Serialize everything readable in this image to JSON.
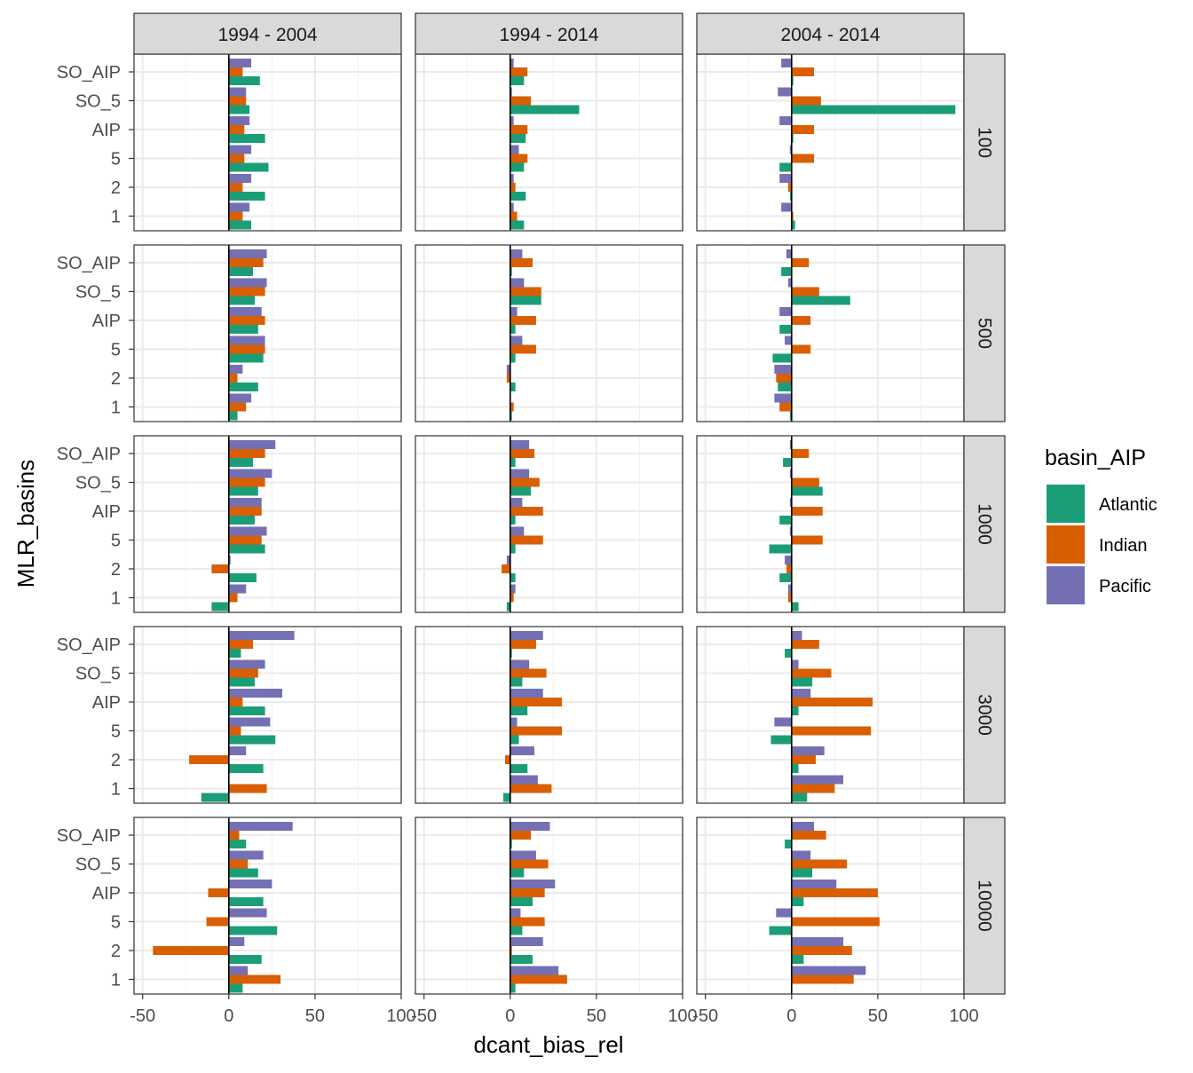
{
  "chart_data": {
    "type": "bar",
    "orientation": "horizontal",
    "xlabel": "dcant_bias_rel",
    "ylabel": "MLR_basins",
    "xlim": [
      -55,
      100
    ],
    "x_ticks": [
      -50,
      0,
      50,
      100
    ],
    "grid": true,
    "legend_position": "right",
    "legend_title": "basin_AIP",
    "columns": [
      "1994 - 2004",
      "1994 - 2014",
      "2004 - 2014"
    ],
    "rows": [
      "100",
      "500",
      "1000",
      "3000",
      "10000"
    ],
    "categories": [
      "SO_AIP",
      "SO_5",
      "AIP",
      "5",
      "2",
      "1"
    ],
    "series": [
      {
        "name": "Atlantic",
        "color": "#1B9E77"
      },
      {
        "name": "Indian",
        "color": "#D95F02"
      },
      {
        "name": "Pacific",
        "color": "#7570B3"
      }
    ],
    "panels": [
      {
        "column": "1994 - 2004",
        "row": "100",
        "values": {
          "Atlantic": [
            18,
            12,
            21,
            23,
            21,
            13
          ],
          "Indian": [
            8,
            10,
            9,
            9,
            8,
            8
          ],
          "Pacific": [
            13,
            10,
            12,
            13,
            13,
            12
          ]
        }
      },
      {
        "column": "1994 - 2014",
        "row": "100",
        "values": {
          "Atlantic": [
            8,
            40,
            9,
            8,
            9,
            8
          ],
          "Indian": [
            10,
            12,
            10,
            10,
            3,
            4
          ],
          "Pacific": [
            2,
            1,
            2,
            5,
            2,
            2
          ]
        }
      },
      {
        "column": "2004 - 2014",
        "row": "100",
        "values": {
          "Atlantic": [
            1,
            95,
            1,
            -7,
            -1,
            2
          ],
          "Indian": [
            13,
            17,
            13,
            13,
            -2,
            1
          ],
          "Pacific": [
            -6,
            -8,
            -7,
            -1,
            -7,
            -6
          ]
        }
      },
      {
        "column": "1994 - 2004",
        "row": "500",
        "values": {
          "Atlantic": [
            14,
            15,
            17,
            20,
            17,
            5
          ],
          "Indian": [
            20,
            21,
            21,
            21,
            5,
            10
          ],
          "Pacific": [
            22,
            22,
            19,
            21,
            8,
            13
          ]
        }
      },
      {
        "column": "1994 - 2014",
        "row": "500",
        "values": {
          "Atlantic": [
            1,
            18,
            3,
            3,
            3,
            1
          ],
          "Indian": [
            13,
            18,
            15,
            15,
            -2,
            2
          ],
          "Pacific": [
            7,
            8,
            4,
            7,
            -2,
            0
          ]
        }
      },
      {
        "column": "2004 - 2014",
        "row": "500",
        "values": {
          "Atlantic": [
            -6,
            34,
            -7,
            -11,
            -8,
            -1
          ],
          "Indian": [
            10,
            16,
            11,
            11,
            -9,
            -7
          ],
          "Pacific": [
            -3,
            -2,
            -7,
            -4,
            -10,
            -10
          ]
        }
      },
      {
        "column": "1994 - 2004",
        "row": "1000",
        "values": {
          "Atlantic": [
            14,
            17,
            15,
            21,
            16,
            -10
          ],
          "Indian": [
            21,
            21,
            19,
            19,
            -10,
            5
          ],
          "Pacific": [
            27,
            25,
            19,
            22,
            1,
            10
          ]
        }
      },
      {
        "column": "1994 - 2014",
        "row": "1000",
        "values": {
          "Atlantic": [
            3,
            12,
            3,
            3,
            3,
            -2
          ],
          "Indian": [
            14,
            17,
            19,
            19,
            -5,
            2
          ],
          "Pacific": [
            11,
            11,
            7,
            8,
            -2,
            3
          ]
        }
      },
      {
        "column": "2004 - 2014",
        "row": "1000",
        "values": {
          "Atlantic": [
            -5,
            18,
            -7,
            -13,
            -7,
            4
          ],
          "Indian": [
            10,
            16,
            18,
            18,
            -3,
            -2
          ],
          "Pacific": [
            -1,
            -1,
            -1,
            -1,
            -4,
            -2
          ]
        }
      },
      {
        "column": "1994 - 2004",
        "row": "3000",
        "values": {
          "Atlantic": [
            7,
            15,
            21,
            27,
            20,
            -16
          ],
          "Indian": [
            14,
            17,
            8,
            7,
            -23,
            22
          ],
          "Pacific": [
            38,
            21,
            31,
            24,
            10,
            0
          ]
        }
      },
      {
        "column": "1994 - 2014",
        "row": "3000",
        "values": {
          "Atlantic": [
            1,
            7,
            10,
            5,
            10,
            -4
          ],
          "Indian": [
            15,
            21,
            30,
            30,
            -3,
            24
          ],
          "Pacific": [
            19,
            11,
            19,
            4,
            14,
            16
          ]
        }
      },
      {
        "column": "2004 - 2014",
        "row": "3000",
        "values": {
          "Atlantic": [
            -4,
            12,
            4,
            -12,
            4,
            9
          ],
          "Indian": [
            16,
            23,
            47,
            46,
            14,
            25
          ],
          "Pacific": [
            6,
            4,
            11,
            -10,
            19,
            30
          ]
        }
      },
      {
        "column": "1994 - 2004",
        "row": "10000",
        "values": {
          "Atlantic": [
            10,
            17,
            20,
            28,
            19,
            8
          ],
          "Indian": [
            6,
            11,
            -12,
            -13,
            -44,
            30
          ],
          "Pacific": [
            37,
            20,
            25,
            22,
            9,
            11
          ]
        }
      },
      {
        "column": "1994 - 2014",
        "row": "10000",
        "values": {
          "Atlantic": [
            1,
            8,
            13,
            7,
            13,
            3
          ],
          "Indian": [
            12,
            22,
            20,
            20,
            1,
            33
          ],
          "Pacific": [
            23,
            15,
            26,
            6,
            19,
            28
          ]
        }
      },
      {
        "column": "2004 - 2014",
        "row": "10000",
        "values": {
          "Atlantic": [
            -4,
            12,
            7,
            -13,
            7,
            0
          ],
          "Indian": [
            20,
            32,
            50,
            51,
            35,
            36
          ],
          "Pacific": [
            13,
            11,
            26,
            -9,
            30,
            43
          ]
        }
      }
    ]
  }
}
